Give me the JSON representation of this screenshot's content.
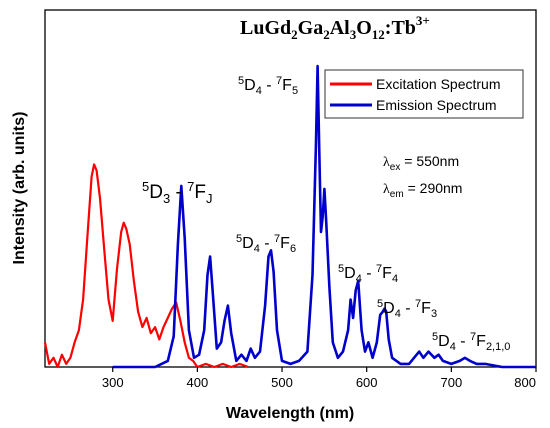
{
  "chart_data": {
    "type": "line",
    "title_parts": {
      "base": "LuGd",
      "s1": "2",
      "b2": "Ga",
      "s2": "2",
      "b3": "Al",
      "s3": "3",
      "b4": "O",
      "s4": "12",
      "b5": ":Tb",
      "sup": "3+"
    },
    "xlabel": "Wavelength (nm)",
    "ylabel": "Intensity (arb. units)",
    "xlim": [
      220,
      800
    ],
    "ylim": [
      0,
      1
    ],
    "x_ticks": [
      300,
      400,
      500,
      600,
      700,
      800
    ],
    "y_ticks_labeled": false,
    "grid": false,
    "legend": {
      "placement": "top-right",
      "entries": [
        {
          "name": "Excitation Spectrum",
          "color": "#ff0000"
        },
        {
          "name": "Emission Spectrum",
          "color": "#0000cc"
        }
      ]
    },
    "params": {
      "ex": {
        "sym": "λ",
        "sub": "ex",
        "text": " = 550nm"
      },
      "em": {
        "sym": "λ",
        "sub": "em",
        "text": " = 290nm"
      }
    },
    "annotations": [
      {
        "id": "d3",
        "n1": "5",
        "a": "D",
        "s1": "3",
        "mid": " - ",
        "n2": "7",
        "b": "F",
        "s2": "J"
      },
      {
        "id": "f5",
        "n1": "5",
        "a": "D",
        "s1": "4",
        "mid": " - ",
        "n2": "7",
        "b": "F",
        "s2": "5"
      },
      {
        "id": "f6",
        "n1": "5",
        "a": "D",
        "s1": "4",
        "mid": " - ",
        "n2": "7",
        "b": "F",
        "s2": "6"
      },
      {
        "id": "f4",
        "n1": "5",
        "a": "D",
        "s1": "4",
        "mid": " - ",
        "n2": "7",
        "b": "F",
        "s2": "4"
      },
      {
        "id": "f3",
        "n1": "5",
        "a": "D",
        "s1": "4",
        "mid": " - ",
        "n2": "7",
        "b": "F",
        "s2": "3"
      },
      {
        "id": "f210",
        "n1": "5",
        "a": "D",
        "s1": "4",
        "mid": " - ",
        "n2": "7",
        "b": "F",
        "s2": "2,1,0"
      }
    ],
    "series": [
      {
        "name": "Excitation Spectrum",
        "color": "#ff0000",
        "x": [
          220,
          225,
          230,
          235,
          240,
          245,
          250,
          255,
          260,
          265,
          270,
          275,
          278,
          281,
          285,
          290,
          295,
          300,
          305,
          310,
          313,
          316,
          320,
          325,
          330,
          335,
          340,
          345,
          350,
          355,
          360,
          365,
          370,
          375,
          380,
          385,
          390,
          395,
          400,
          410,
          420,
          430,
          440,
          450,
          460
        ],
        "y": [
          0.08,
          0.01,
          0.03,
          0.0,
          0.04,
          0.01,
          0.03,
          0.08,
          0.12,
          0.22,
          0.42,
          0.62,
          0.66,
          0.64,
          0.55,
          0.38,
          0.22,
          0.15,
          0.32,
          0.44,
          0.47,
          0.45,
          0.4,
          0.28,
          0.18,
          0.13,
          0.16,
          0.11,
          0.13,
          0.09,
          0.13,
          0.16,
          0.19,
          0.21,
          0.15,
          0.08,
          0.03,
          0.02,
          0.0,
          0.01,
          0.0,
          0.01,
          0.0,
          0.01,
          0.0
        ]
      },
      {
        "name": "Emission Spectrum",
        "color": "#0000cc",
        "x": [
          300,
          350,
          365,
          372,
          377,
          381,
          385,
          390,
          396,
          402,
          408,
          412,
          415,
          418,
          423,
          428,
          432,
          436,
          440,
          446,
          452,
          458,
          463,
          468,
          474,
          480,
          484,
          487,
          490,
          494,
          500,
          510,
          520,
          530,
          536,
          540,
          542,
          544,
          546,
          548,
          550,
          552,
          556,
          560,
          566,
          572,
          578,
          581,
          584,
          587,
          590,
          594,
          598,
          602,
          607,
          612,
          616,
          619,
          621,
          623,
          626,
          630,
          640,
          650,
          662,
          667,
          673,
          680,
          685,
          690,
          700,
          710,
          716,
          722,
          730,
          740,
          760,
          780,
          800
        ],
        "y": [
          0.0,
          0.0,
          0.02,
          0.1,
          0.4,
          0.59,
          0.42,
          0.12,
          0.03,
          0.04,
          0.12,
          0.3,
          0.36,
          0.25,
          0.06,
          0.08,
          0.15,
          0.2,
          0.11,
          0.02,
          0.04,
          0.02,
          0.06,
          0.03,
          0.05,
          0.2,
          0.36,
          0.38,
          0.31,
          0.12,
          0.02,
          0.01,
          0.02,
          0.05,
          0.3,
          0.72,
          0.98,
          0.7,
          0.44,
          0.49,
          0.58,
          0.48,
          0.26,
          0.08,
          0.03,
          0.05,
          0.12,
          0.22,
          0.16,
          0.25,
          0.28,
          0.12,
          0.05,
          0.08,
          0.03,
          0.08,
          0.17,
          0.18,
          0.19,
          0.18,
          0.09,
          0.03,
          0.01,
          0.01,
          0.05,
          0.03,
          0.05,
          0.03,
          0.04,
          0.02,
          0.01,
          0.02,
          0.03,
          0.02,
          0.01,
          0.01,
          0.0,
          0.0,
          0.0
        ]
      }
    ]
  }
}
